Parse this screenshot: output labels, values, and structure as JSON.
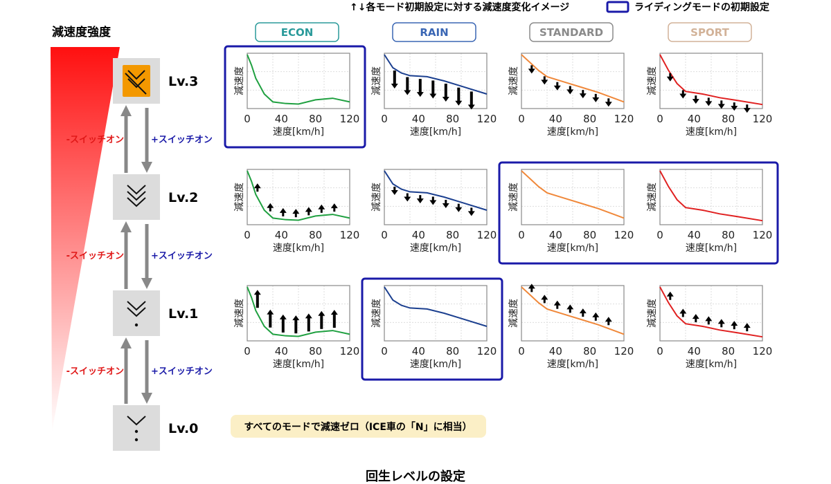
{
  "legend": {
    "arrow_note": "↑↓各モード初期設定に対する減速度変化イメージ",
    "box_note": "ライディングモードの初期設定",
    "box_color": "#1a1aa8"
  },
  "intensity_label": "減速度強度",
  "footer_title": "回生レベルの設定",
  "switch_minus": "-スイッチオン",
  "switch_plus": "+スイッチオン",
  "levels": [
    {
      "label": "Lv.3",
      "icon": "triple-chevron-down-icon"
    },
    {
      "label": "Lv.2",
      "icon": "double-chevron-dot-icon"
    },
    {
      "label": "Lv.1",
      "icon": "chevron-two-dots-icon"
    },
    {
      "label": "Lv.0",
      "icon": "regen-off-icon"
    }
  ],
  "lv0_note": "すべてのモードで減速ゼロ（ICE車の「N」に相当）",
  "modes": [
    {
      "label": "ECON",
      "color": "#1fa040",
      "badge_color": "#2a9a9a"
    },
    {
      "label": "RAIN",
      "color": "#1b3f8f",
      "badge_color": "#3a66b4"
    },
    {
      "label": "STANDARD",
      "color": "#f0883a",
      "badge_color": "#8a8a8a"
    },
    {
      "label": "SPORT",
      "color": "#e02020",
      "badge_color": "#d2b298"
    }
  ],
  "chart_data": {
    "type": "line",
    "ylabel": "減速度",
    "xlabel": "速度[km/h]",
    "xticks": [
      "0",
      "40",
      "80",
      "120"
    ],
    "xlim": [
      0,
      120
    ],
    "grid": true,
    "curves": {
      "ECON": {
        "x": [
          0,
          5,
          10,
          20,
          30,
          45,
          60,
          80,
          100,
          120
        ],
        "y": [
          1.0,
          0.8,
          0.55,
          0.25,
          0.1,
          0.07,
          0.06,
          0.14,
          0.17,
          0.1
        ]
      },
      "RAIN": {
        "x": [
          0,
          10,
          20,
          30,
          50,
          70,
          90,
          120
        ],
        "y": [
          1.0,
          0.75,
          0.65,
          0.6,
          0.58,
          0.5,
          0.4,
          0.25
        ]
      },
      "STANDARD": {
        "x": [
          0,
          10,
          20,
          30,
          50,
          70,
          90,
          120
        ],
        "y": [
          1.0,
          0.85,
          0.7,
          0.58,
          0.48,
          0.38,
          0.28,
          0.1
        ]
      },
      "SPORT": {
        "x": [
          0,
          10,
          20,
          30,
          50,
          70,
          90,
          120
        ],
        "y": [
          1.0,
          0.7,
          0.45,
          0.3,
          0.25,
          0.18,
          0.13,
          0.05
        ]
      }
    },
    "rows": [
      {
        "level": "Lv.3",
        "default_mode": "ECON",
        "arrows": {
          "ECON": "none",
          "RAIN": "down-large",
          "STANDARD": "down-small",
          "SPORT": "down-small"
        }
      },
      {
        "level": "Lv.2",
        "default_mode": [
          "STANDARD",
          "SPORT"
        ],
        "arrows": {
          "ECON": "up-small",
          "RAIN": "down-small",
          "STANDARD": "none",
          "SPORT": "none"
        }
      },
      {
        "level": "Lv.1",
        "default_mode": "RAIN",
        "arrows": {
          "ECON": "up-large",
          "RAIN": "none",
          "STANDARD": "up-small",
          "SPORT": "up-small"
        }
      }
    ]
  }
}
